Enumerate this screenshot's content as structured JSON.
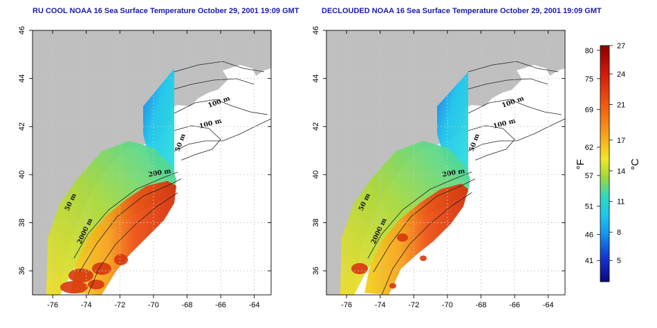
{
  "panels": [
    {
      "title": "RU COOL NOAA 16 Sea Surface Temperature October 29, 2001 19:09 GMT",
      "contour_labels": [
        "100 m",
        "100 m",
        "50 m",
        "200 m",
        "50 m",
        "2000 m"
      ]
    },
    {
      "title": "DECLOUDED NOAA 16 Sea Surface Temperature October 29, 2001 19:09 GMT",
      "contour_labels": [
        "100 m",
        "100 m",
        "50 m",
        "200 m",
        "50 m",
        "2000 m"
      ]
    }
  ],
  "axes": {
    "x_ticks": [
      "-76",
      "-74",
      "-72",
      "-70",
      "-68",
      "-66",
      "-64"
    ],
    "y_ticks": [
      "36",
      "38",
      "40",
      "42",
      "44",
      "46"
    ],
    "x_range": [
      -77.2,
      -63.0
    ],
    "y_range": [
      35.0,
      46.0
    ]
  },
  "colorbar": {
    "fahrenheit_ticks": [
      "80",
      "75",
      "69",
      "62",
      "57",
      "51",
      "46",
      "41"
    ],
    "celsius_ticks": [
      "27",
      "24",
      "21",
      "17",
      "14",
      "11",
      "8",
      "5"
    ],
    "fahrenheit_unit": "°F",
    "celsius_unit": "°C",
    "range_celsius": [
      2,
      27
    ]
  },
  "colors": {
    "land": "#bfbfbf",
    "title": "#1a1aa8",
    "grid": "#c8c8c8"
  }
}
